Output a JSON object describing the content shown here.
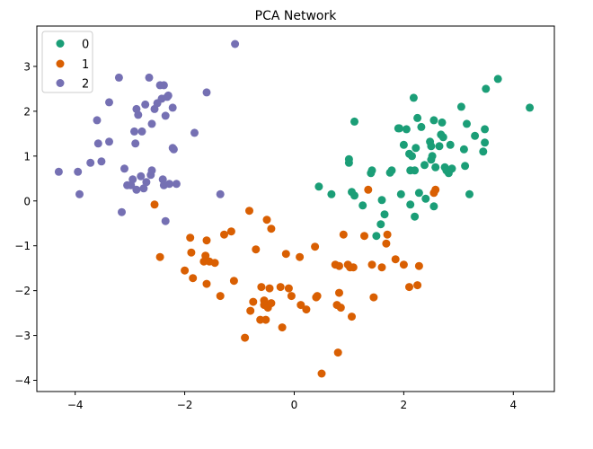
{
  "chart_data": {
    "type": "scatter",
    "title": "PCA Network",
    "xlabel": "",
    "ylabel": "",
    "xlim": [
      -4.7,
      4.75
    ],
    "ylim": [
      -4.25,
      3.9
    ],
    "xticks": [
      -4,
      -2,
      0,
      2,
      4
    ],
    "xtick_labels": [
      "−4",
      "−2",
      "0",
      "2",
      "4"
    ],
    "yticks": [
      -4,
      -3,
      -2,
      -1,
      0,
      1,
      2,
      3
    ],
    "ytick_labels": [
      "−4",
      "−3",
      "−2",
      "−1",
      "0",
      "1",
      "2",
      "3"
    ],
    "grid": false,
    "legend_position": "top-left",
    "series": [
      {
        "name": "0",
        "color": "#1b9e77",
        "points": [
          [
            0.45,
            0.32
          ],
          [
            0.68,
            0.15
          ],
          [
            1.0,
            0.93
          ],
          [
            1.0,
            0.85
          ],
          [
            1.05,
            0.2
          ],
          [
            1.1,
            0.12
          ],
          [
            1.1,
            1.77
          ],
          [
            1.25,
            -0.1
          ],
          [
            1.4,
            0.62
          ],
          [
            1.42,
            0.68
          ],
          [
            1.5,
            -0.78
          ],
          [
            1.58,
            -0.52
          ],
          [
            1.6,
            0.02
          ],
          [
            1.65,
            -0.3
          ],
          [
            1.75,
            0.63
          ],
          [
            1.78,
            0.68
          ],
          [
            1.9,
            1.62
          ],
          [
            1.92,
            1.62
          ],
          [
            1.95,
            0.15
          ],
          [
            2.0,
            1.25
          ],
          [
            2.05,
            1.6
          ],
          [
            2.1,
            1.05
          ],
          [
            2.12,
            0.68
          ],
          [
            2.12,
            -0.08
          ],
          [
            2.15,
            1.0
          ],
          [
            2.18,
            2.3
          ],
          [
            2.2,
            0.68
          ],
          [
            2.2,
            -0.35
          ],
          [
            2.22,
            1.18
          ],
          [
            2.25,
            1.85
          ],
          [
            2.28,
            0.18
          ],
          [
            2.32,
            1.65
          ],
          [
            2.38,
            0.8
          ],
          [
            2.4,
            0.05
          ],
          [
            2.48,
            1.32
          ],
          [
            2.5,
            1.22
          ],
          [
            2.5,
            0.92
          ],
          [
            2.52,
            1.0
          ],
          [
            2.55,
            1.8
          ],
          [
            2.55,
            -0.12
          ],
          [
            2.58,
            0.75
          ],
          [
            2.65,
            1.22
          ],
          [
            2.68,
            1.48
          ],
          [
            2.7,
            1.75
          ],
          [
            2.72,
            1.42
          ],
          [
            2.75,
            0.75
          ],
          [
            2.78,
            0.68
          ],
          [
            2.82,
            0.62
          ],
          [
            2.85,
            1.25
          ],
          [
            2.88,
            0.72
          ],
          [
            3.05,
            2.1
          ],
          [
            3.1,
            1.15
          ],
          [
            3.12,
            0.78
          ],
          [
            3.15,
            1.72
          ],
          [
            3.2,
            0.15
          ],
          [
            3.3,
            1.45
          ],
          [
            3.45,
            1.1
          ],
          [
            3.48,
            1.3
          ],
          [
            3.48,
            1.6
          ],
          [
            3.5,
            2.5
          ],
          [
            3.72,
            2.72
          ],
          [
            4.3,
            2.08
          ]
        ]
      },
      {
        "name": "1",
        "color": "#d95f02",
        "points": [
          [
            -2.55,
            -0.08
          ],
          [
            -2.45,
            -1.25
          ],
          [
            -2.0,
            -1.55
          ],
          [
            -1.9,
            -0.82
          ],
          [
            -1.88,
            -1.15
          ],
          [
            -1.85,
            -1.72
          ],
          [
            -1.65,
            -1.35
          ],
          [
            -1.62,
            -1.22
          ],
          [
            -1.6,
            -0.88
          ],
          [
            -1.6,
            -1.85
          ],
          [
            -1.55,
            -1.35
          ],
          [
            -1.45,
            -1.38
          ],
          [
            -1.35,
            -2.12
          ],
          [
            -1.28,
            -0.75
          ],
          [
            -1.15,
            -0.68
          ],
          [
            -1.1,
            -1.78
          ],
          [
            -0.9,
            -3.05
          ],
          [
            -0.82,
            -0.22
          ],
          [
            -0.8,
            -2.45
          ],
          [
            -0.75,
            -2.25
          ],
          [
            -0.7,
            -1.08
          ],
          [
            -0.62,
            -2.65
          ],
          [
            -0.6,
            -1.92
          ],
          [
            -0.55,
            -2.22
          ],
          [
            -0.55,
            -2.32
          ],
          [
            -0.52,
            -2.65
          ],
          [
            -0.5,
            -0.42
          ],
          [
            -0.48,
            -2.38
          ],
          [
            -0.45,
            -1.95
          ],
          [
            -0.42,
            -2.28
          ],
          [
            -0.42,
            -0.62
          ],
          [
            -0.25,
            -1.92
          ],
          [
            -0.22,
            -2.82
          ],
          [
            -0.15,
            -1.18
          ],
          [
            -0.1,
            -1.95
          ],
          [
            -0.05,
            -2.12
          ],
          [
            0.1,
            -1.25
          ],
          [
            0.12,
            -2.32
          ],
          [
            0.22,
            -2.42
          ],
          [
            0.38,
            -1.02
          ],
          [
            0.4,
            -2.15
          ],
          [
            0.42,
            -2.12
          ],
          [
            0.5,
            -3.85
          ],
          [
            0.75,
            -1.42
          ],
          [
            0.78,
            -2.32
          ],
          [
            0.8,
            -3.38
          ],
          [
            0.82,
            -1.45
          ],
          [
            0.82,
            -2.05
          ],
          [
            0.85,
            -2.38
          ],
          [
            0.9,
            -0.75
          ],
          [
            0.98,
            -1.42
          ],
          [
            1.02,
            -1.48
          ],
          [
            1.05,
            -2.58
          ],
          [
            1.08,
            -1.48
          ],
          [
            1.28,
            -0.78
          ],
          [
            1.35,
            0.25
          ],
          [
            1.42,
            -1.42
          ],
          [
            1.45,
            -2.15
          ],
          [
            1.6,
            -1.48
          ],
          [
            1.68,
            -0.95
          ],
          [
            1.7,
            -0.75
          ],
          [
            1.85,
            -1.3
          ],
          [
            2.0,
            -1.42
          ],
          [
            2.1,
            -1.92
          ],
          [
            2.25,
            -1.88
          ],
          [
            2.28,
            -1.45
          ],
          [
            2.55,
            0.18
          ],
          [
            2.58,
            0.25
          ]
        ]
      },
      {
        "name": "2",
        "color": "#7570b3",
        "points": [
          [
            -4.3,
            0.65
          ],
          [
            -3.95,
            0.65
          ],
          [
            -3.92,
            0.15
          ],
          [
            -3.72,
            0.85
          ],
          [
            -3.6,
            1.8
          ],
          [
            -3.58,
            1.28
          ],
          [
            -3.52,
            0.88
          ],
          [
            -3.38,
            1.32
          ],
          [
            -3.38,
            2.2
          ],
          [
            -3.2,
            2.75
          ],
          [
            -3.15,
            -0.25
          ],
          [
            -3.1,
            0.72
          ],
          [
            -3.05,
            0.35
          ],
          [
            -2.98,
            0.35
          ],
          [
            -2.95,
            0.48
          ],
          [
            -2.92,
            1.55
          ],
          [
            -2.9,
            1.28
          ],
          [
            -2.88,
            2.05
          ],
          [
            -2.88,
            0.25
          ],
          [
            -2.85,
            1.92
          ],
          [
            -2.8,
            0.55
          ],
          [
            -2.78,
            1.55
          ],
          [
            -2.75,
            0.28
          ],
          [
            -2.72,
            2.15
          ],
          [
            -2.7,
            0.42
          ],
          [
            -2.65,
            2.75
          ],
          [
            -2.62,
            0.58
          ],
          [
            -2.6,
            1.72
          ],
          [
            -2.6,
            0.68
          ],
          [
            -2.55,
            2.05
          ],
          [
            -2.5,
            2.18
          ],
          [
            -2.45,
            2.58
          ],
          [
            -2.42,
            2.28
          ],
          [
            -2.4,
            0.48
          ],
          [
            -2.38,
            2.58
          ],
          [
            -2.38,
            0.35
          ],
          [
            -2.35,
            1.9
          ],
          [
            -2.35,
            -0.45
          ],
          [
            -2.32,
            2.32
          ],
          [
            -2.3,
            2.35
          ],
          [
            -2.28,
            0.38
          ],
          [
            -2.22,
            1.18
          ],
          [
            -2.22,
            2.08
          ],
          [
            -2.2,
            1.15
          ],
          [
            -2.15,
            0.38
          ],
          [
            -1.82,
            1.52
          ],
          [
            -1.6,
            2.42
          ],
          [
            -1.35,
            0.15
          ],
          [
            -1.08,
            3.5
          ]
        ]
      }
    ]
  }
}
